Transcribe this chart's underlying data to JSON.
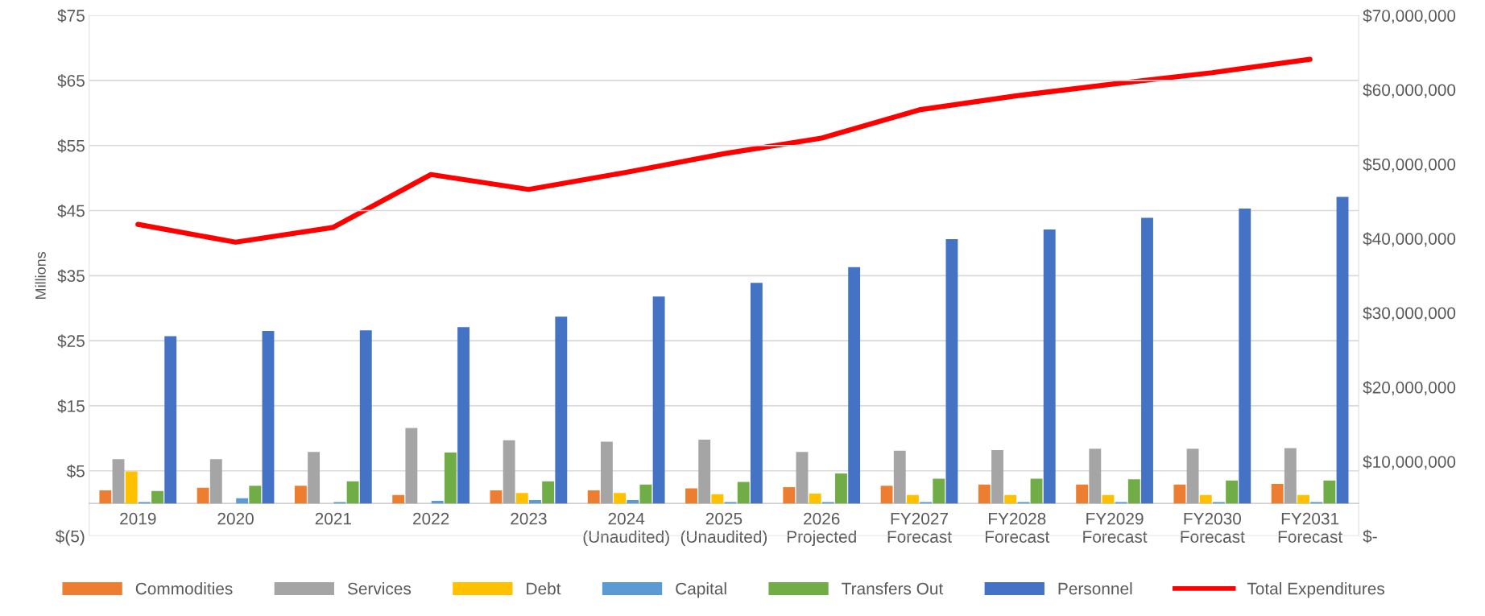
{
  "chart_data": {
    "type": "bar",
    "ylabel": "Millions",
    "categories": [
      "2019",
      "2020",
      "2021",
      "2022",
      "2023",
      "2024\n(Unaudited)",
      "2025\n(Unaudited)",
      "2026\nProjected",
      "FY2027\nForecast",
      "FY2028\nForecast",
      "FY2029\nForecast",
      "FY2030\nForecast",
      "FY2031\nForecast"
    ],
    "series": [
      {
        "name": "Commodities",
        "color": "#ed7d31",
        "values": [
          2.0,
          2.4,
          2.7,
          1.3,
          2.0,
          2.0,
          2.3,
          2.5,
          2.7,
          2.9,
          2.9,
          2.9,
          3.0
        ]
      },
      {
        "name": "Services",
        "color": "#a5a5a5",
        "values": [
          6.8,
          6.8,
          7.9,
          11.6,
          9.7,
          9.5,
          9.8,
          7.9,
          8.1,
          8.2,
          8.4,
          8.4,
          8.5
        ]
      },
      {
        "name": "Debt",
        "color": "#ffc000",
        "values": [
          4.9,
          0,
          0,
          0,
          1.6,
          1.6,
          1.4,
          1.5,
          1.3,
          1.3,
          1.3,
          1.3,
          1.3
        ]
      },
      {
        "name": "Capital",
        "color": "#5b9bd5",
        "values": [
          0.2,
          0.8,
          0.2,
          0.4,
          0.5,
          0.5,
          0.2,
          0.2,
          0.2,
          0.2,
          0.2,
          0.2,
          0.2
        ]
      },
      {
        "name": "Transfers Out",
        "color": "#70ad47",
        "values": [
          1.9,
          2.7,
          3.4,
          7.8,
          3.4,
          2.9,
          3.3,
          4.6,
          3.8,
          3.8,
          3.7,
          3.5,
          3.5
        ]
      },
      {
        "name": "Personnel",
        "color": "#4472c4",
        "values": [
          25.7,
          26.5,
          26.6,
          27.1,
          28.7,
          31.8,
          33.9,
          36.3,
          40.6,
          42.1,
          43.9,
          45.3,
          47.1
        ]
      },
      {
        "name": "Total Expenditures",
        "type": "line",
        "axis": "y2",
        "color": "#ff0000",
        "values": [
          41900000,
          39500000,
          41500000,
          48600000,
          46600000,
          48900000,
          51400000,
          53500000,
          57300000,
          59200000,
          60800000,
          62300000,
          64100000
        ]
      }
    ],
    "ylim": [
      -5,
      75
    ],
    "yticks": [
      {
        "value": -5,
        "label": "$(5)"
      },
      {
        "value": 5,
        "label": "$5"
      },
      {
        "value": 15,
        "label": "$15"
      },
      {
        "value": 25,
        "label": "$25"
      },
      {
        "value": 35,
        "label": "$35"
      },
      {
        "value": 45,
        "label": "$45"
      },
      {
        "value": 55,
        "label": "$55"
      },
      {
        "value": 65,
        "label": "$65"
      },
      {
        "value": 75,
        "label": "$75"
      }
    ],
    "y2lim": [
      0,
      70000000
    ],
    "y2ticks": [
      {
        "value": 0,
        "label": "$-"
      },
      {
        "value": 10000000,
        "label": "$10,000,000"
      },
      {
        "value": 20000000,
        "label": "$20,000,000"
      },
      {
        "value": 30000000,
        "label": "$30,000,000"
      },
      {
        "value": 40000000,
        "label": "$40,000,000"
      },
      {
        "value": 50000000,
        "label": "$50,000,000"
      },
      {
        "value": 60000000,
        "label": "$60,000,000"
      },
      {
        "value": 70000000,
        "label": "$70,000,000"
      }
    ],
    "grid": "y",
    "legend": "bottom",
    "marker": "none",
    "line_style": "solid"
  }
}
